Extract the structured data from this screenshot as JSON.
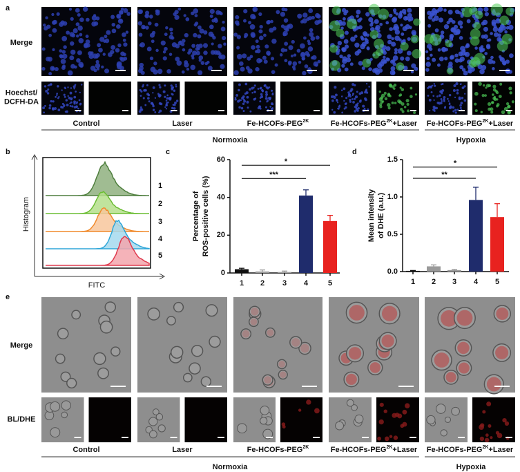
{
  "panel_labels": [
    "a",
    "b",
    "c",
    "d",
    "e"
  ],
  "panel_a": {
    "row_labels": [
      [
        "Merge"
      ],
      [
        "Hoechst/",
        "DCFH-DA"
      ]
    ],
    "groups": [
      {
        "text": "Control"
      },
      {
        "text": "Laser"
      },
      {
        "text": "Fe-HCOFs-PEG",
        "sup": "2K"
      },
      {
        "text": "Fe-HCOFs-PEG",
        "sup": "2K",
        "suffix": "+Laser"
      },
      {
        "text": "Fe-HCOFs-PEG",
        "sup": "2K",
        "suffix": "+Laser"
      }
    ],
    "conditions": [
      "Normoxia",
      "Hypoxia"
    ]
  },
  "panel_b": {
    "y_label": "Histogram",
    "x_label": "FITC",
    "curve_labels": [
      "1",
      "2",
      "3",
      "4",
      "5"
    ]
  },
  "panel_e": {
    "row_labels": [
      [
        "Merge"
      ],
      [
        "BL/DHE"
      ]
    ],
    "groups": [
      {
        "text": "Control"
      },
      {
        "text": "Laser"
      },
      {
        "text": "Fe-HCOFs-PEG",
        "sup": "2K"
      },
      {
        "text": "Fe-HCOFs-PEG",
        "sup": "2K",
        "suffix": "+Laser"
      },
      {
        "text": "Fe-HCOFs-PEG",
        "sup": "2K",
        "suffix": "+Laser"
      }
    ],
    "conditions": [
      "Normoxia",
      "Hypoxia"
    ]
  },
  "chart_data": [
    {
      "type": "bar",
      "y_label": [
        "Percentage of",
        "ROS-positive cells (%)"
      ],
      "categories": [
        "1",
        "2",
        "3",
        "4",
        "5"
      ],
      "values": [
        2,
        0.8,
        0.5,
        41,
        27.5
      ],
      "errors": [
        0.5,
        0.8,
        0.5,
        3,
        3
      ],
      "colors": [
        "#111111",
        "#9a9a9a",
        "#9a9a9a",
        "#1f2c6c",
        "#e8221f"
      ],
      "ylim": [
        0,
        60
      ],
      "yticks": [
        0,
        20,
        40,
        60
      ],
      "significance": [
        {
          "label": "***",
          "value": 50,
          "categories": [
            "1",
            "4"
          ]
        },
        {
          "label": "*",
          "value": 57,
          "categories": [
            "1",
            "5"
          ]
        }
      ]
    },
    {
      "type": "bar",
      "y_label": [
        "Mean intensity",
        "of DHE (a.u.)"
      ],
      "categories": [
        "1",
        "2",
        "3",
        "4",
        "5"
      ],
      "values": [
        0.01,
        0.07,
        0.02,
        0.96,
        0.73
      ],
      "errors": [
        0.005,
        0.02,
        0.01,
        0.17,
        0.18
      ],
      "colors": [
        "#111111",
        "#9a9a9a",
        "#9a9a9a",
        "#1f2c6c",
        "#e8221f"
      ],
      "ylim": [
        0,
        1.5
      ],
      "yticks": [
        {
          "value": 0,
          "label": "0.0"
        },
        0.5,
        {
          "value": 1,
          "label": "1.0"
        },
        1.5
      ],
      "significance": [
        {
          "label": "**",
          "value": 1.25,
          "categories": [
            "1",
            "4"
          ]
        },
        {
          "label": "*",
          "value": 1.4,
          "categories": [
            "1",
            "5"
          ]
        }
      ]
    }
  ]
}
